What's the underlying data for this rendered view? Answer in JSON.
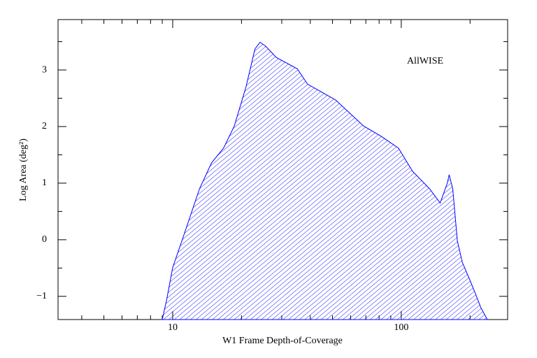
{
  "chart_data": {
    "type": "area",
    "annotation": "AllWISE",
    "xlabel": "W1 Frame Depth-of-Coverage",
    "ylabel": "Log Area (deg²)",
    "xscale": "log",
    "color": "#0000ff",
    "hatch": true,
    "x": [
      9.0,
      9.4,
      10,
      11.1,
      13.1,
      14.8,
      16.7,
      18.6,
      20.9,
      22.9,
      24.1,
      25.5,
      28.4,
      35.1,
      38.9,
      51.6,
      68.4,
      81.5,
      97.2,
      112,
      133,
      148,
      159,
      162,
      168,
      176,
      185,
      199,
      211,
      223,
      238
    ],
    "values": [
      -1.41,
      -1.07,
      -0.49,
      0.04,
      0.9,
      1.36,
      1.62,
      2.01,
      2.69,
      3.37,
      3.49,
      3.42,
      3.22,
      3.02,
      2.75,
      2.47,
      2.01,
      1.83,
      1.62,
      1.21,
      0.9,
      0.65,
      1.0,
      1.15,
      0.9,
      -0.02,
      -0.4,
      -0.7,
      -0.95,
      -1.2,
      -1.41
    ],
    "xlim": [
      3.15,
      292
    ],
    "ylim": [
      -1.41,
      3.89
    ],
    "xticks": [
      10,
      100
    ],
    "xminorticks": [
      4,
      5,
      6,
      7,
      8,
      9,
      20,
      30,
      40,
      50,
      60,
      70,
      80,
      90,
      200
    ],
    "yticks": [
      {
        "value": -1,
        "label": "−1"
      },
      0,
      1,
      2,
      3
    ],
    "yminorticks": [
      -0.5,
      0.5,
      1.5,
      2.5,
      3.5
    ]
  }
}
